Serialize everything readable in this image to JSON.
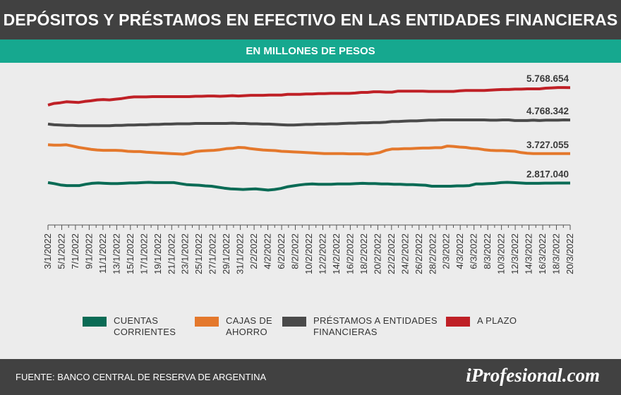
{
  "header": {
    "title": "DEPÓSITOS Y PRÉSTAMOS EN EFECTIVO EN LAS ENTIDADES FINANCIERAS",
    "subtitle": "EN MILLONES DE PESOS"
  },
  "footer": {
    "source": "FUENTE: BANCO CENTRAL DE RESERVA DE ARGENTINA",
    "brand": "iProfesional.com"
  },
  "chart_data": {
    "type": "line",
    "title": "DEPÓSITOS Y PRÉSTAMOS EN EFECTIVO EN LAS ENTIDADES FINANCIERAS",
    "subtitle": "EN MILLONES DE PESOS",
    "xlabel": "",
    "ylabel": "",
    "grid": false,
    "legend_position": "bottom",
    "y_axis_visible": false,
    "ylim": [
      2000000,
      6100000
    ],
    "x_ticks": [
      "3/1/2022",
      "5/1/2022",
      "7/1/2022",
      "9/1/2022",
      "11/1/2022",
      "13/1/2022",
      "15/1/2022",
      "17/1/2022",
      "19/1/2022",
      "21/1/2022",
      "23/1/2022",
      "25/1/2022",
      "27/1/2022",
      "29/1/2022",
      "31/1/2022",
      "2/2/2022",
      "4/2/2022",
      "6/2/2022",
      "8/2/2022",
      "10/2/2022",
      "12/2/2022",
      "14/2/2022",
      "16/2/2022",
      "18/2/2022",
      "20/2/2022",
      "22/2/2022",
      "24/2/2022",
      "26/2/2022",
      "28/2/2022",
      "2/3/2022",
      "4/3/2022",
      "6/3/2022",
      "8/3/2022",
      "10/3/2022",
      "12/3/2022",
      "14/3/2022",
      "16/3/2022",
      "18/3/2022",
      "20/3/2022"
    ],
    "series": [
      {
        "name": "A PLAZO",
        "color": "#bf2026",
        "end_label": "5.768.654",
        "values": [
          5230000,
          5280000,
          5300000,
          5330000,
          5320000,
          5310000,
          5340000,
          5360000,
          5390000,
          5400000,
          5390000,
          5410000,
          5430000,
          5460000,
          5480000,
          5480000,
          5480000,
          5490000,
          5490000,
          5490000,
          5490000,
          5490000,
          5490000,
          5490000,
          5500000,
          5500000,
          5510000,
          5510000,
          5500000,
          5510000,
          5520000,
          5510000,
          5520000,
          5530000,
          5530000,
          5530000,
          5540000,
          5540000,
          5540000,
          5560000,
          5560000,
          5560000,
          5570000,
          5570000,
          5580000,
          5580000,
          5590000,
          5590000,
          5590000,
          5590000,
          5600000,
          5620000,
          5620000,
          5640000,
          5640000,
          5630000,
          5630000,
          5660000,
          5660000,
          5660000,
          5660000,
          5660000,
          5650000,
          5650000,
          5650000,
          5650000,
          5650000,
          5670000,
          5680000,
          5680000,
          5680000,
          5680000,
          5690000,
          5700000,
          5710000,
          5710000,
          5720000,
          5720000,
          5730000,
          5730000,
          5730000,
          5750000,
          5760000,
          5770000,
          5770000,
          5768654
        ]
      },
      {
        "name": "PRÉSTAMOS A ENTIDADES FINANCIERAS",
        "color": "#4a4a4a",
        "end_label": "4.768.342",
        "values": [
          4640000,
          4620000,
          4610000,
          4600000,
          4600000,
          4590000,
          4590000,
          4590000,
          4590000,
          4590000,
          4590000,
          4600000,
          4600000,
          4610000,
          4610000,
          4620000,
          4620000,
          4630000,
          4630000,
          4640000,
          4640000,
          4650000,
          4650000,
          4650000,
          4660000,
          4660000,
          4660000,
          4660000,
          4660000,
          4660000,
          4670000,
          4660000,
          4660000,
          4650000,
          4650000,
          4640000,
          4640000,
          4630000,
          4620000,
          4610000,
          4610000,
          4620000,
          4630000,
          4630000,
          4640000,
          4640000,
          4650000,
          4650000,
          4660000,
          4670000,
          4670000,
          4680000,
          4680000,
          4690000,
          4690000,
          4700000,
          4720000,
          4720000,
          4730000,
          4740000,
          4740000,
          4750000,
          4760000,
          4760000,
          4770000,
          4770000,
          4770000,
          4770000,
          4770000,
          4770000,
          4770000,
          4770000,
          4760000,
          4760000,
          4770000,
          4770000,
          4750000,
          4750000,
          4750000,
          4760000,
          4750000,
          4760000,
          4760000,
          4760000,
          4770000,
          4768342
        ]
      },
      {
        "name": "CAJAS DE AHORRO",
        "color": "#e4782c",
        "end_label": "3.727.055",
        "values": [
          4000000,
          3990000,
          3990000,
          4000000,
          3960000,
          3920000,
          3890000,
          3860000,
          3840000,
          3830000,
          3830000,
          3830000,
          3820000,
          3800000,
          3790000,
          3790000,
          3770000,
          3760000,
          3750000,
          3740000,
          3730000,
          3720000,
          3710000,
          3740000,
          3790000,
          3810000,
          3820000,
          3830000,
          3850000,
          3880000,
          3890000,
          3920000,
          3910000,
          3880000,
          3860000,
          3840000,
          3830000,
          3820000,
          3800000,
          3790000,
          3780000,
          3770000,
          3760000,
          3750000,
          3740000,
          3730000,
          3730000,
          3730000,
          3730000,
          3720000,
          3720000,
          3720000,
          3710000,
          3730000,
          3760000,
          3830000,
          3870000,
          3870000,
          3880000,
          3880000,
          3890000,
          3900000,
          3900000,
          3910000,
          3910000,
          3960000,
          3950000,
          3930000,
          3920000,
          3890000,
          3880000,
          3850000,
          3830000,
          3820000,
          3820000,
          3810000,
          3800000,
          3760000,
          3740000,
          3730000,
          3730000,
          3730000,
          3730000,
          3730000,
          3730000,
          3727055
        ]
      },
      {
        "name": "CUENTAS CORRIENTES",
        "color": "#0a6b55",
        "end_label": "2.817.040",
        "values": [
          2830000,
          2800000,
          2760000,
          2740000,
          2740000,
          2740000,
          2780000,
          2810000,
          2820000,
          2810000,
          2800000,
          2800000,
          2810000,
          2820000,
          2820000,
          2830000,
          2840000,
          2830000,
          2830000,
          2830000,
          2830000,
          2800000,
          2770000,
          2760000,
          2750000,
          2730000,
          2720000,
          2690000,
          2660000,
          2640000,
          2630000,
          2620000,
          2630000,
          2640000,
          2620000,
          2600000,
          2620000,
          2650000,
          2700000,
          2730000,
          2760000,
          2780000,
          2790000,
          2780000,
          2780000,
          2780000,
          2790000,
          2790000,
          2790000,
          2800000,
          2810000,
          2800000,
          2800000,
          2790000,
          2790000,
          2780000,
          2780000,
          2770000,
          2770000,
          2760000,
          2750000,
          2720000,
          2720000,
          2720000,
          2720000,
          2730000,
          2730000,
          2740000,
          2790000,
          2790000,
          2800000,
          2810000,
          2830000,
          2840000,
          2830000,
          2820000,
          2810000,
          2810000,
          2810000,
          2815000,
          2816000,
          2817000,
          2817000,
          2817040
        ]
      }
    ]
  },
  "legend": {
    "items": [
      {
        "label": "CUENTAS CORRIENTES",
        "color": "#0a6b55"
      },
      {
        "label": "CAJAS DE AHORRO",
        "color": "#e4782c"
      },
      {
        "label": "PRÉSTAMOS A ENTIDADES FINANCIERAS",
        "color": "#4a4a4a"
      },
      {
        "label": "A PLAZO",
        "color": "#bf2026"
      }
    ]
  }
}
